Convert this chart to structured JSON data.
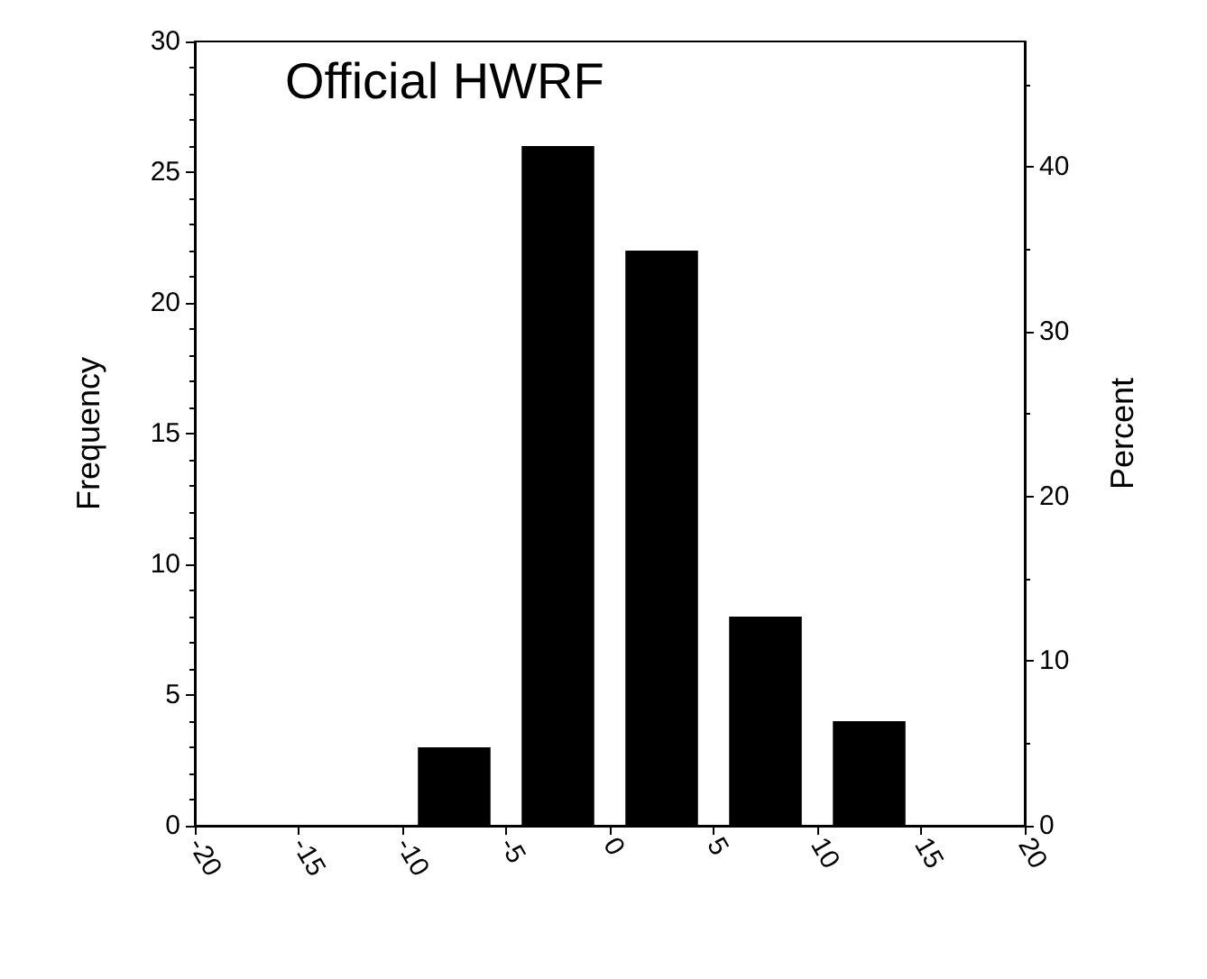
{
  "chart_data": {
    "type": "histogram",
    "title": "Official HWRF",
    "ylabel": "Frequency",
    "y2label": "Percent",
    "bins": [
      -20,
      -15,
      -10,
      -5,
      0,
      5,
      10,
      15,
      20
    ],
    "values": [
      0,
      0,
      3,
      26,
      22,
      8,
      4,
      0
    ],
    "color": "#000000",
    "xlim": [
      -20,
      20
    ],
    "xticks": [
      -20,
      -15,
      -10,
      -5,
      0,
      5,
      10,
      15,
      20
    ],
    "ylim": [
      0,
      30
    ],
    "yticks": [
      0,
      5,
      10,
      15,
      20,
      25,
      30
    ],
    "y2lim": [
      0,
      47.62
    ],
    "y2ticks": [
      0,
      10,
      20,
      30,
      40
    ],
    "grid": false
  }
}
